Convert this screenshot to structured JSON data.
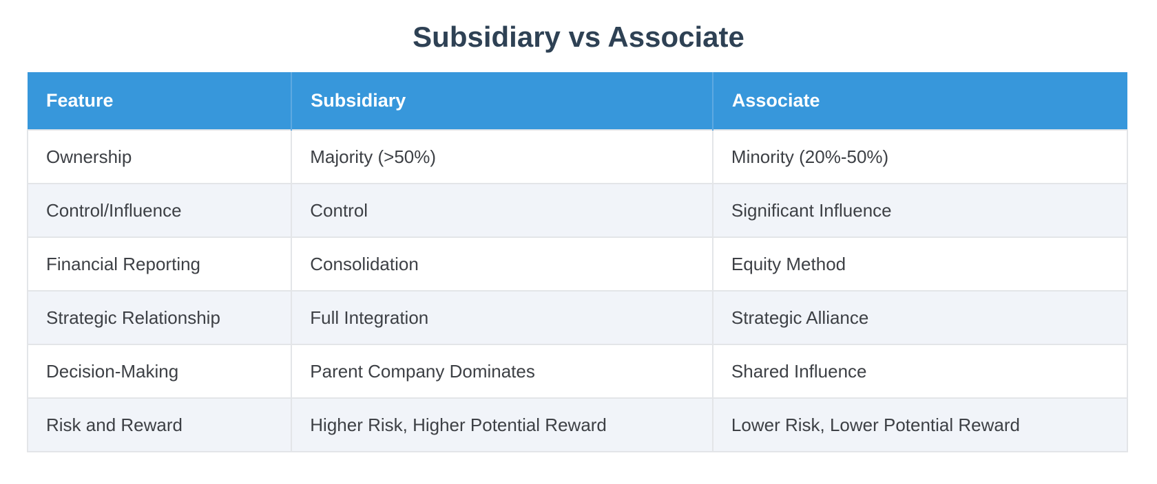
{
  "title": "Subsidiary vs Associate",
  "table": {
    "columns": [
      "Feature",
      "Subsidiary",
      "Associate"
    ],
    "rows": [
      [
        "Ownership",
        "Majority (>50%)",
        "Minority (20%-50%)"
      ],
      [
        "Control/Influence",
        "Control",
        "Significant Influence"
      ],
      [
        "Financial Reporting",
        "Consolidation",
        "Equity Method"
      ],
      [
        "Strategic Relationship",
        "Full Integration",
        "Strategic Alliance"
      ],
      [
        "Decision-Making",
        "Parent Company Dominates",
        "Shared Influence"
      ],
      [
        "Risk and Reward",
        "Higher Risk, Higher Potential Reward",
        "Lower Risk, Lower Potential Reward"
      ]
    ]
  },
  "colors": {
    "header_bg": "#3797db",
    "header_divider": "#5ea9e1",
    "header_text": "#ffffff",
    "title_text": "#2e4154",
    "row_bg": "#ffffff",
    "row_alt_bg": "#f1f4f9",
    "border": "#e3e5e8",
    "body_text": "#3d4045"
  }
}
